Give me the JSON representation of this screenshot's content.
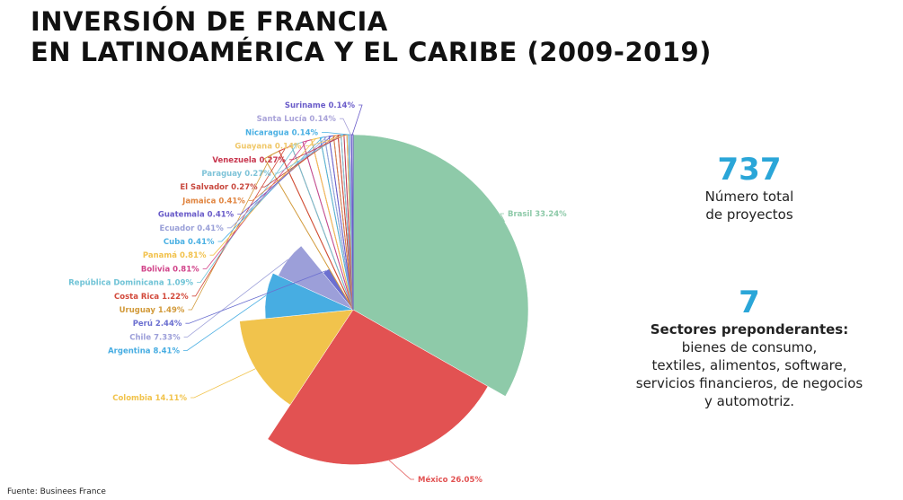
{
  "title": [
    "INVERSIÓN DE FRANCIA",
    "EN LATINOAMÉRICA Y EL CARIBE (2009-2019)"
  ],
  "chart_data": {
    "type": "pie",
    "categories": [
      "Brasil",
      "México",
      "Colombia",
      "Argentina",
      "Chile",
      "Perú",
      "Uruguay",
      "Costa Rica",
      "República Dominicana",
      "Bolivia",
      "Panamá",
      "Cuba",
      "Ecuador",
      "Guatemala",
      "Jamaica",
      "El Salvador",
      "Paraguay",
      "Venezuela",
      "Guayana",
      "Nicaragua",
      "Santa Lucía",
      "Suriname"
    ],
    "values": [
      33.24,
      26.05,
      14.11,
      8.41,
      7.33,
      2.44,
      1.49,
      1.22,
      1.09,
      0.81,
      0.81,
      0.41,
      0.41,
      0.41,
      0.41,
      0.27,
      0.27,
      0.27,
      0.14,
      0.14,
      0.14,
      0.14
    ],
    "value_labels": [
      "33.24%",
      "26.05%",
      "14.11%",
      "8.41%",
      "7.33%",
      "2.44%",
      "1.49%",
      "1.22%",
      "1.09%",
      "0.81%",
      "0.81%",
      "0.41%",
      "0.41%",
      "0.41%",
      "0.41%",
      "0.27%",
      "0.27%",
      "0.27%",
      "0.14%",
      "0.14%",
      "0.14%",
      "0.14%"
    ],
    "colors": [
      "#8ecaa9",
      "#e25252",
      "#f1c34c",
      "#47ade2",
      "#9c9fd9",
      "#6b6fd0",
      "#d29a3a",
      "#d2493b",
      "#6fc3d6",
      "#d1448a",
      "#f2c24d",
      "#4ab0e3",
      "#9aa0d8",
      "#6a5cc9",
      "#e0843f",
      "#c8493f",
      "#7ec3d8",
      "#c8374f",
      "#f0c86a",
      "#4ab0e3",
      "#a9a3d9",
      "#6a5cc9"
    ]
  },
  "stats": [
    {
      "number": 737,
      "lines": [
        "Número total",
        "de proyectos"
      ]
    },
    {
      "number": 7,
      "lines": [
        "Sectores preponderantes:",
        "bienes de consumo,",
        "textiles, alimentos, software,",
        "servicios financieros, de negocios",
        "y automotriz."
      ]
    }
  ],
  "source": "Fuente: Businees France"
}
